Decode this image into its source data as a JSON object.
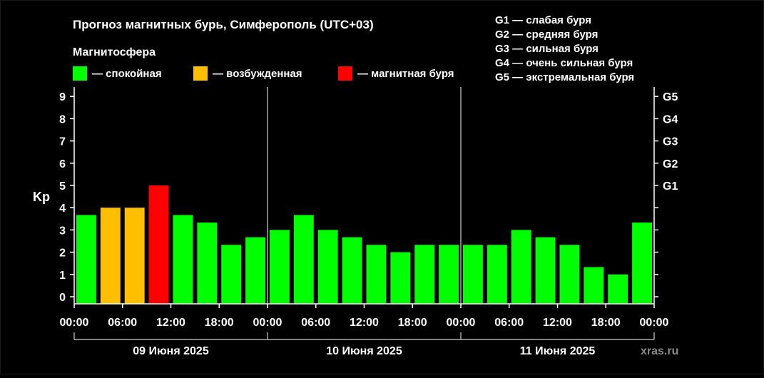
{
  "chart_data": {
    "type": "bar",
    "title": "Прогноз магнитных бурь, Симферополь (UTC+03)",
    "legend_title": "Магнитосфера",
    "legend": [
      {
        "label": "— спокойная",
        "color": "#00ff00"
      },
      {
        "label": "— возбужденная",
        "color": "#ffbf00"
      },
      {
        "label": "— магнитная буря",
        "color": "#ff0000"
      }
    ],
    "storm_levels": [
      "G1 — слабая буря",
      "G2 — средняя буря",
      "G3 — сильная буря",
      "G4 — очень сильная буря",
      "G5 — экстремальная буря"
    ],
    "ylabel": "Kp",
    "ylim": [
      0,
      9
    ],
    "y_ticks": [
      "0",
      "1",
      "2",
      "3",
      "4",
      "5",
      "6",
      "7",
      "8",
      "9"
    ],
    "y2_ticks": [
      {
        "value": 5,
        "label": "G1"
      },
      {
        "value": 6,
        "label": "G2"
      },
      {
        "value": 7,
        "label": "G3"
      },
      {
        "value": 8,
        "label": "G4"
      },
      {
        "value": 9,
        "label": "G5"
      }
    ],
    "x_ticks": [
      "00:00",
      "06:00",
      "12:00",
      "18:00",
      "00:00",
      "06:00",
      "12:00",
      "18:00",
      "00:00",
      "06:00",
      "12:00",
      "18:00",
      "00:00"
    ],
    "days": [
      "09 Июня 2025",
      "10 Июня 2025",
      "11 Июня 2025"
    ],
    "values": [
      3.67,
      4.0,
      4.0,
      5.0,
      3.67,
      3.33,
      2.33,
      2.67,
      3.0,
      3.67,
      3.0,
      2.67,
      2.33,
      2.0,
      2.33,
      2.33,
      2.33,
      2.33,
      3.0,
      2.67,
      2.33,
      1.33,
      1.0,
      3.33
    ],
    "colors": {
      "quiet": "#00ff00",
      "active": "#ffbf00",
      "storm": "#ff0000",
      "axis": "#ffffff",
      "background": "#000000"
    },
    "watermark": "xras.ru"
  }
}
